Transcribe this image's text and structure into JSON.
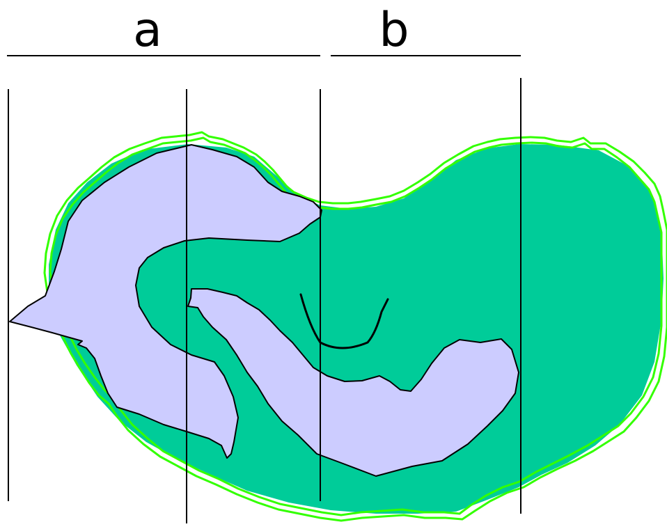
{
  "labels": {
    "a": "a",
    "b": "b"
  },
  "colors": {
    "background": "#ffffff",
    "body_fill": "#00cc99",
    "outline_green": "#33ff00",
    "inner_fill": "#ccccff",
    "line": "#000000"
  }
}
